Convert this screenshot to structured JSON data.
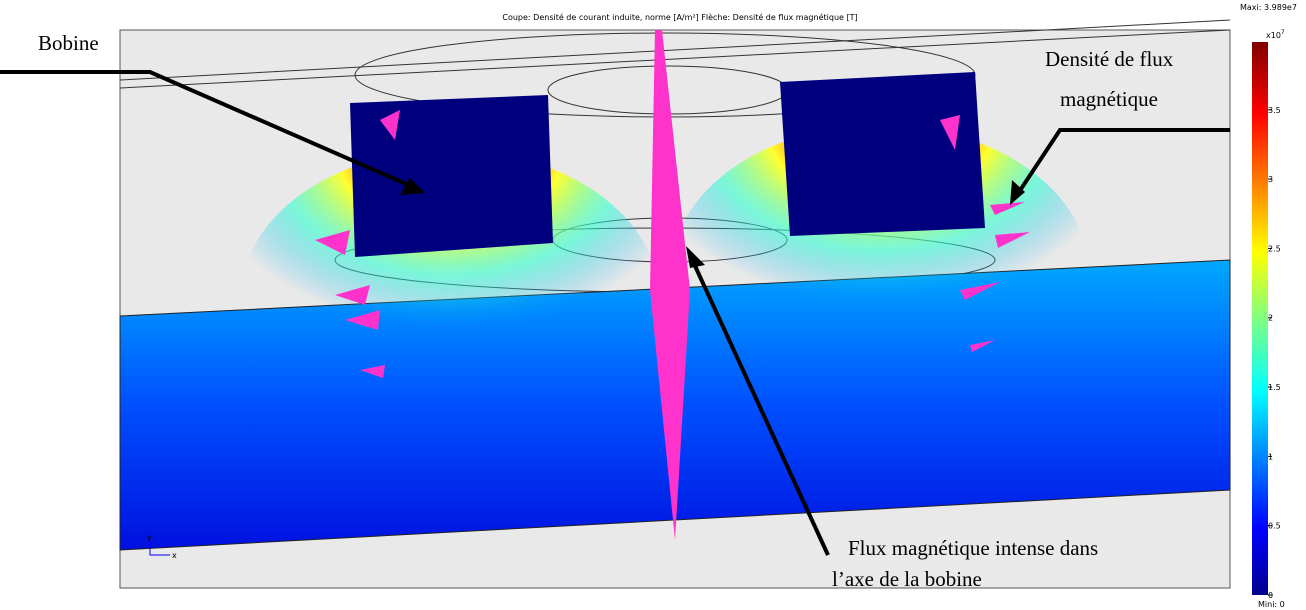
{
  "header": {
    "title": "Coupe: Densité de courant induite, norme [A/m²]   Flèche: Densité de flux magnétique [T]"
  },
  "annotations": {
    "coil": "Bobine",
    "flux_density": [
      "Densité de flux",
      "magnétique"
    ],
    "axis_flux": [
      "Flux magnétique intense dans",
      "l’axe de la bobine"
    ]
  },
  "axes_triad": {
    "x": "x",
    "y": "y"
  },
  "colorbar": {
    "max_label": "Maxi: 3.989e7",
    "min_label": "Mini: 0",
    "multiplier": "x10",
    "exponent": "7",
    "range": [
      0,
      3.989
    ],
    "ticks": [
      0,
      0.5,
      1,
      1.5,
      2,
      2.5,
      3,
      3.5
    ]
  }
}
